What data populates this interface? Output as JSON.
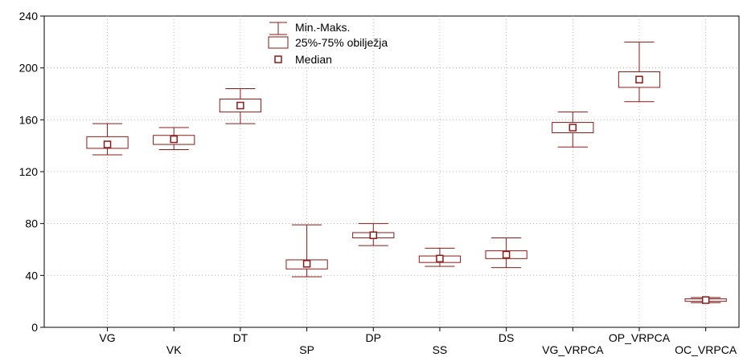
{
  "chart_data": {
    "type": "box",
    "title": "",
    "xlabel": "",
    "ylabel": "",
    "ylim": [
      0,
      240
    ],
    "yticks": [
      0,
      40,
      80,
      120,
      160,
      200,
      240
    ],
    "grid": true,
    "legend_position": "top-center",
    "color": "#8b1a1a",
    "legend": [
      "Min.-Maks.",
      "25%-75% obilježja",
      "Median"
    ],
    "categories": [
      "VG",
      "VK",
      "DT",
      "SP",
      "DP",
      "SS",
      "DS",
      "VG_VRPCA",
      "OP_VRPCA",
      "OC_VRPCA"
    ],
    "category_labels": [
      "VG",
      "VK",
      "DT",
      "SP",
      "DP",
      "SS",
      "DS",
      "VG_VRPCA",
      "OP_VRPCA",
      "OC_VRPCA"
    ],
    "boxes": [
      {
        "category": "VG",
        "min": 133,
        "q1": 138,
        "median": 141,
        "q3": 147,
        "max": 157
      },
      {
        "category": "VK",
        "min": 137,
        "q1": 141,
        "median": 145,
        "q3": 148,
        "max": 154
      },
      {
        "category": "DT",
        "min": 157,
        "q1": 166,
        "median": 171,
        "q3": 176,
        "max": 184
      },
      {
        "category": "SP",
        "min": 39,
        "q1": 45,
        "median": 49,
        "q3": 52,
        "max": 79
      },
      {
        "category": "DP",
        "min": 63,
        "q1": 69,
        "median": 71,
        "q3": 73,
        "max": 80
      },
      {
        "category": "SS",
        "min": 47,
        "q1": 50,
        "median": 53,
        "q3": 55,
        "max": 61
      },
      {
        "category": "DS",
        "min": 46,
        "q1": 53,
        "median": 56,
        "q3": 59,
        "max": 69
      },
      {
        "category": "VG_VRPCA",
        "min": 139,
        "q1": 150,
        "median": 154,
        "q3": 158,
        "max": 166
      },
      {
        "category": "OP_VRPCA",
        "min": 174,
        "q1": 185,
        "median": 191,
        "q3": 197,
        "max": 220
      },
      {
        "category": "OC_VRPCA",
        "min": 19,
        "q1": 20,
        "median": 21,
        "q3": 22,
        "max": 23
      }
    ]
  }
}
